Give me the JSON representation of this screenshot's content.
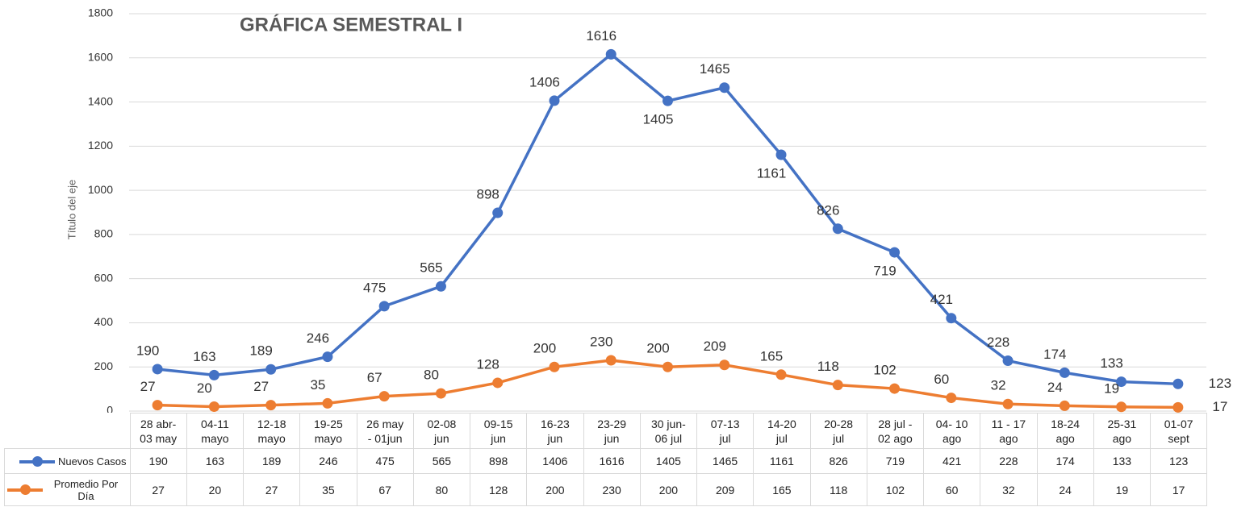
{
  "chart_data": {
    "type": "line",
    "title": "GRÁFICA SEMESTRAL I",
    "y_label": "Título del eje",
    "categories": [
      "28 abr-\n03 may",
      "04-11\nmayo",
      "12-18\nmayo",
      "19-25\nmayo",
      "26 may\n- 01jun",
      "02-08\njun",
      "09-15\njun",
      "16-23\njun",
      "23-29\njun",
      "30 jun-\n06 jul",
      "07-13\njul",
      "14-20\njul",
      "20-28\njul",
      "28 jul -\n02 ago",
      "04- 10\nago",
      "11 - 17\nago",
      "18-24\nago",
      "25-31\nago",
      "01-07\nsept"
    ],
    "series": [
      {
        "name": "Nuevos Casos",
        "color": "#4472c4",
        "values": [
          190,
          163,
          189,
          246,
          475,
          565,
          898,
          1406,
          1616,
          1405,
          1465,
          1161,
          826,
          719,
          421,
          228,
          174,
          133,
          123
        ]
      },
      {
        "name": "Promedio Por Día",
        "color": "#ed7d31",
        "values": [
          27,
          20,
          27,
          35,
          67,
          80,
          128,
          200,
          230,
          200,
          209,
          165,
          118,
          102,
          60,
          32,
          24,
          19,
          17
        ]
      }
    ],
    "ylim": [
      0,
      1800
    ],
    "yticks": [
      0,
      200,
      400,
      600,
      800,
      1000,
      1200,
      1400,
      1600,
      1800
    ],
    "grid": true
  }
}
